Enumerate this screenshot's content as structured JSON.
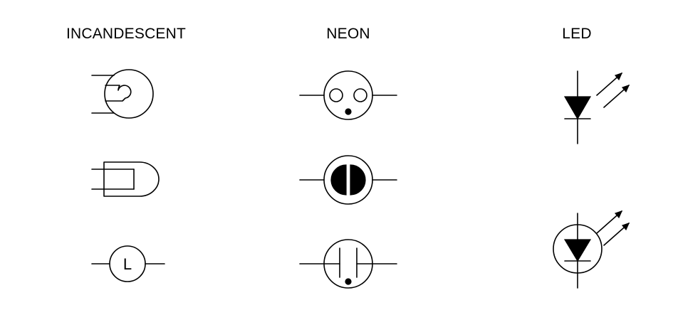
{
  "columns": {
    "incandescent": "INCANDESCENT",
    "neon": "NEON",
    "led": "LED"
  },
  "symbols": {
    "incandescent_letter": "L"
  },
  "colors": {
    "background": "#ffffff",
    "stroke": "#000000"
  }
}
